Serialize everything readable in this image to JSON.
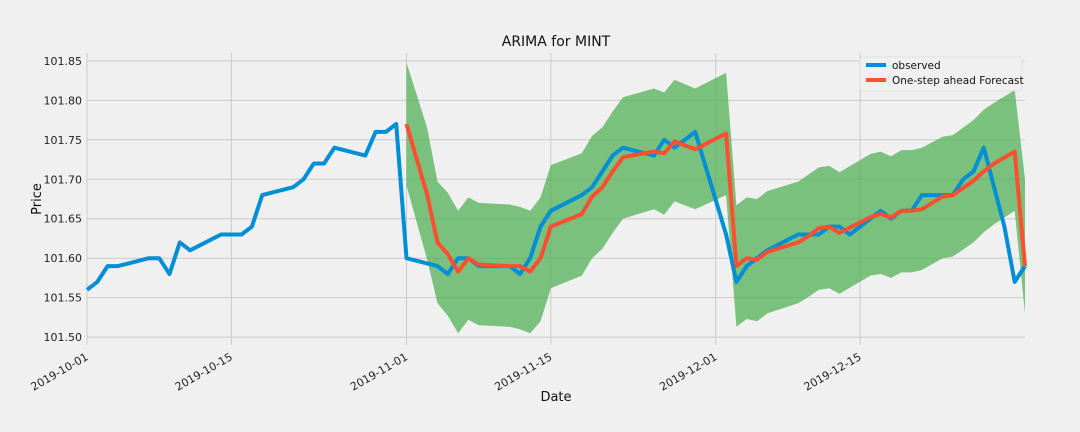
{
  "chart_data": {
    "type": "line",
    "title": "ARIMA for MINT",
    "xlabel": "Date",
    "ylabel": "Price",
    "x_range": [
      "2019-10-01",
      "2019-12-31"
    ],
    "ylim": [
      101.49,
      101.86
    ],
    "y_ticks": [
      101.5,
      101.55,
      101.6,
      101.65,
      101.7,
      101.75,
      101.8,
      101.85
    ],
    "x_ticks": [
      "2019-10-01",
      "2019-10-15",
      "2019-11-01",
      "2019-11-15",
      "2019-12-01",
      "2019-12-15"
    ],
    "grid": true,
    "legend_position": "top-right",
    "colors": {
      "observed": "#008fd5",
      "forecast": "#fc4f30",
      "confidence": "#4caf50",
      "grid": "#cbcbcb",
      "background": "#f0f0f0"
    },
    "series": [
      {
        "name": "observed",
        "points": [
          [
            "2019-10-01",
            101.56
          ],
          [
            "2019-10-02",
            101.57
          ],
          [
            "2019-10-03",
            101.59
          ],
          [
            "2019-10-04",
            101.59
          ],
          [
            "2019-10-07",
            101.6
          ],
          [
            "2019-10-08",
            101.6
          ],
          [
            "2019-10-09",
            101.58
          ],
          [
            "2019-10-10",
            101.62
          ],
          [
            "2019-10-11",
            101.61
          ],
          [
            "2019-10-14",
            101.63
          ],
          [
            "2019-10-15",
            101.63
          ],
          [
            "2019-10-16",
            101.63
          ],
          [
            "2019-10-17",
            101.64
          ],
          [
            "2019-10-18",
            101.68
          ],
          [
            "2019-10-21",
            101.69
          ],
          [
            "2019-10-22",
            101.7
          ],
          [
            "2019-10-23",
            101.72
          ],
          [
            "2019-10-24",
            101.72
          ],
          [
            "2019-10-25",
            101.74
          ],
          [
            "2019-10-28",
            101.73
          ],
          [
            "2019-10-29",
            101.76
          ],
          [
            "2019-10-30",
            101.76
          ],
          [
            "2019-10-31",
            101.77
          ],
          [
            "2019-11-01",
            101.6
          ],
          [
            "2019-11-04",
            101.59
          ],
          [
            "2019-11-05",
            101.58
          ],
          [
            "2019-11-06",
            101.6
          ],
          [
            "2019-11-07",
            101.6
          ],
          [
            "2019-11-08",
            101.59
          ],
          [
            "2019-11-11",
            101.59
          ],
          [
            "2019-11-12",
            101.58
          ],
          [
            "2019-11-13",
            101.6
          ],
          [
            "2019-11-14",
            101.64
          ],
          [
            "2019-11-15",
            101.66
          ],
          [
            "2019-11-18",
            101.68
          ],
          [
            "2019-11-19",
            101.69
          ],
          [
            "2019-11-20",
            101.71
          ],
          [
            "2019-11-21",
            101.73
          ],
          [
            "2019-11-22",
            101.74
          ],
          [
            "2019-11-25",
            101.73
          ],
          [
            "2019-11-26",
            101.75
          ],
          [
            "2019-11-27",
            101.74
          ],
          [
            "2019-11-29",
            101.76
          ],
          [
            "2019-12-02",
            101.63
          ],
          [
            "2019-12-03",
            101.57
          ],
          [
            "2019-12-04",
            101.59
          ],
          [
            "2019-12-05",
            101.6
          ],
          [
            "2019-12-06",
            101.61
          ],
          [
            "2019-12-09",
            101.63
          ],
          [
            "2019-12-10",
            101.63
          ],
          [
            "2019-12-11",
            101.63
          ],
          [
            "2019-12-12",
            101.64
          ],
          [
            "2019-12-13",
            101.64
          ],
          [
            "2019-12-14",
            101.63
          ],
          [
            "2019-12-16",
            101.65
          ],
          [
            "2019-12-17",
            101.66
          ],
          [
            "2019-12-18",
            101.65
          ],
          [
            "2019-12-19",
            101.66
          ],
          [
            "2019-12-20",
            101.66
          ],
          [
            "2019-12-21",
            101.68
          ],
          [
            "2019-12-23",
            101.68
          ],
          [
            "2019-12-24",
            101.68
          ],
          [
            "2019-12-25",
            101.7
          ],
          [
            "2019-12-26",
            101.71
          ],
          [
            "2019-12-27",
            101.74
          ],
          [
            "2019-12-28",
            101.69
          ],
          [
            "2019-12-29",
            101.64
          ],
          [
            "2019-12-30",
            101.57
          ],
          [
            "2019-12-31",
            101.59
          ]
        ]
      },
      {
        "name": "One-step ahead Forecast",
        "points": [
          [
            "2019-11-01",
            101.77
          ],
          [
            "2019-11-03",
            101.68
          ],
          [
            "2019-11-04",
            101.62
          ],
          [
            "2019-11-05",
            101.605
          ],
          [
            "2019-11-06",
            101.583
          ],
          [
            "2019-11-07",
            101.6
          ],
          [
            "2019-11-08",
            101.592
          ],
          [
            "2019-11-11",
            101.59
          ],
          [
            "2019-11-12",
            101.59
          ],
          [
            "2019-11-13",
            101.583
          ],
          [
            "2019-11-14",
            101.6
          ],
          [
            "2019-11-15",
            101.64
          ],
          [
            "2019-11-18",
            101.656
          ],
          [
            "2019-11-19",
            101.678
          ],
          [
            "2019-11-20",
            101.69
          ],
          [
            "2019-11-21",
            101.71
          ],
          [
            "2019-11-22",
            101.728
          ],
          [
            "2019-11-25",
            101.735
          ],
          [
            "2019-11-26",
            101.733
          ],
          [
            "2019-11-27",
            101.748
          ],
          [
            "2019-11-29",
            101.738
          ],
          [
            "2019-12-02",
            101.758
          ],
          [
            "2019-12-03",
            101.59
          ],
          [
            "2019-12-04",
            101.6
          ],
          [
            "2019-12-05",
            101.598
          ],
          [
            "2019-12-06",
            101.608
          ],
          [
            "2019-12-09",
            101.62
          ],
          [
            "2019-12-10",
            101.628
          ],
          [
            "2019-12-11",
            101.638
          ],
          [
            "2019-12-12",
            101.64
          ],
          [
            "2019-12-13",
            101.632
          ],
          [
            "2019-12-16",
            101.652
          ],
          [
            "2019-12-17",
            101.656
          ],
          [
            "2019-12-18",
            101.652
          ],
          [
            "2019-12-19",
            101.66
          ],
          [
            "2019-12-20",
            101.66
          ],
          [
            "2019-12-21",
            101.662
          ],
          [
            "2019-12-23",
            101.678
          ],
          [
            "2019-12-24",
            101.68
          ],
          [
            "2019-12-26",
            101.698
          ],
          [
            "2019-12-27",
            101.71
          ],
          [
            "2019-12-28",
            101.72
          ],
          [
            "2019-12-30",
            101.735
          ],
          [
            "2019-12-31",
            101.59
          ]
        ]
      }
    ],
    "confidence_band": [
      [
        "2019-11-01",
        101.692,
        101.848
      ],
      [
        "2019-11-03",
        101.598,
        101.765
      ],
      [
        "2019-11-04",
        101.543,
        101.697
      ],
      [
        "2019-11-05",
        101.527,
        101.683
      ],
      [
        "2019-11-06",
        101.505,
        101.66
      ],
      [
        "2019-11-07",
        101.522,
        101.677
      ],
      [
        "2019-11-08",
        101.515,
        101.67
      ],
      [
        "2019-11-11",
        101.513,
        101.668
      ],
      [
        "2019-11-12",
        101.51,
        101.665
      ],
      [
        "2019-11-13",
        101.505,
        101.66
      ],
      [
        "2019-11-14",
        101.52,
        101.677
      ],
      [
        "2019-11-15",
        101.562,
        101.718
      ],
      [
        "2019-11-18",
        101.578,
        101.733
      ],
      [
        "2019-11-19",
        101.6,
        101.755
      ],
      [
        "2019-11-20",
        101.612,
        101.766
      ],
      [
        "2019-11-21",
        101.632,
        101.786
      ],
      [
        "2019-11-22",
        101.65,
        101.804
      ],
      [
        "2019-11-25",
        101.662,
        101.815
      ],
      [
        "2019-11-26",
        101.655,
        101.81
      ],
      [
        "2019-11-27",
        101.672,
        101.826
      ],
      [
        "2019-11-29",
        101.662,
        101.815
      ],
      [
        "2019-12-02",
        101.68,
        101.835
      ],
      [
        "2019-12-03",
        101.513,
        101.667
      ],
      [
        "2019-12-04",
        101.523,
        101.677
      ],
      [
        "2019-12-05",
        101.52,
        101.675
      ],
      [
        "2019-12-06",
        101.53,
        101.685
      ],
      [
        "2019-12-09",
        101.543,
        101.697
      ],
      [
        "2019-12-10",
        101.551,
        101.706
      ],
      [
        "2019-12-11",
        101.56,
        101.715
      ],
      [
        "2019-12-12",
        101.562,
        101.717
      ],
      [
        "2019-12-13",
        101.555,
        101.709
      ],
      [
        "2019-12-16",
        101.578,
        101.732
      ],
      [
        "2019-12-17",
        101.58,
        101.735
      ],
      [
        "2019-12-18",
        101.575,
        101.729
      ],
      [
        "2019-12-19",
        101.582,
        101.737
      ],
      [
        "2019-12-20",
        101.582,
        101.737
      ],
      [
        "2019-12-21",
        101.585,
        101.74
      ],
      [
        "2019-12-23",
        101.6,
        101.754
      ],
      [
        "2019-12-24",
        101.602,
        101.756
      ],
      [
        "2019-12-26",
        101.62,
        101.775
      ],
      [
        "2019-12-27",
        101.633,
        101.788
      ],
      [
        "2019-12-28",
        101.643,
        101.797
      ],
      [
        "2019-12-30",
        101.66,
        101.813
      ],
      [
        "2019-12-31",
        101.53,
        101.7
      ]
    ]
  }
}
